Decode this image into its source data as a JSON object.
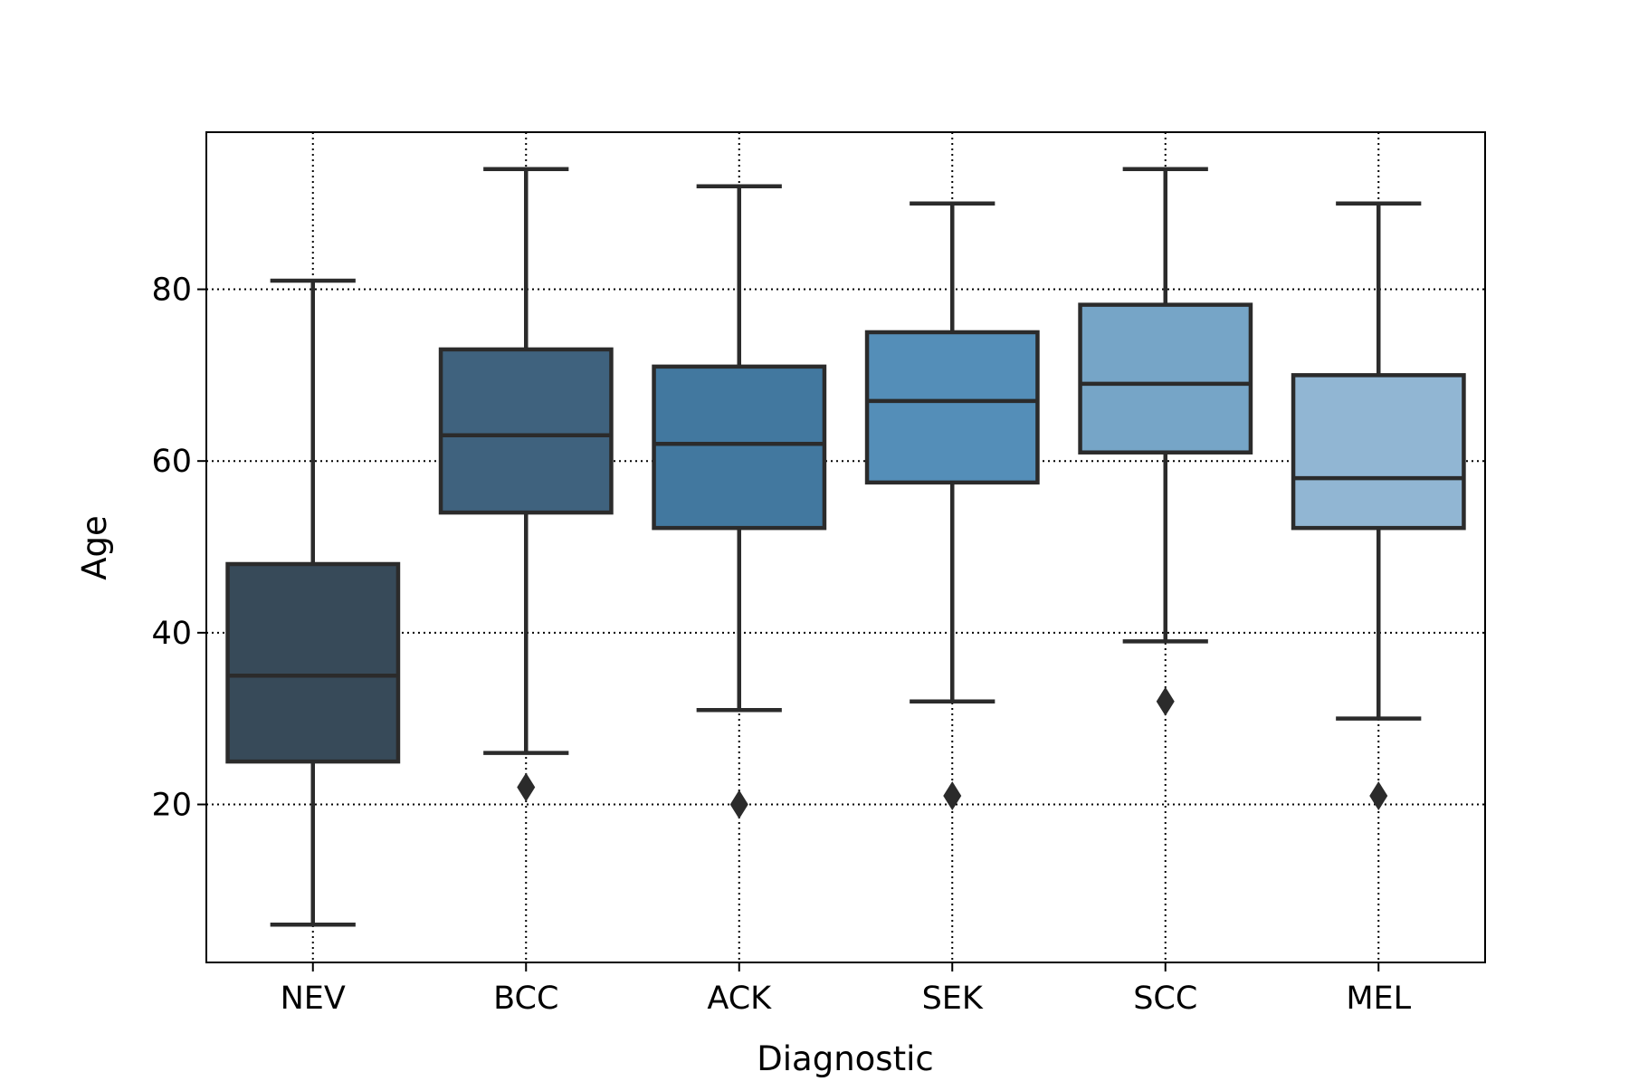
{
  "chart_data": {
    "type": "box",
    "title": "",
    "xlabel": "Diagnostic",
    "ylabel": "Age",
    "ylim": [
      1.6,
      98.3
    ],
    "yticks": [
      20,
      40,
      60,
      80
    ],
    "ytick_labels": [
      "20",
      "40",
      "60",
      "80"
    ],
    "grid": true,
    "categories": [
      "NEV",
      "BCC",
      "ACK",
      "SEK",
      "SCC",
      "MEL"
    ],
    "boxes": [
      {
        "category": "NEV",
        "whisker_low": 6,
        "q1": 25,
        "median": 35,
        "q3": 48,
        "whisker_high": 81,
        "outliers": [],
        "color": "#374a59"
      },
      {
        "category": "BCC",
        "whisker_low": 26,
        "q1": 54,
        "median": 63,
        "q3": 73,
        "whisker_high": 94,
        "outliers": [
          22
        ],
        "color": "#3f627e"
      },
      {
        "category": "ACK",
        "whisker_low": 31,
        "q1": 52.2,
        "median": 62,
        "q3": 71,
        "whisker_high": 92,
        "outliers": [
          20
        ],
        "color": "#42789f"
      },
      {
        "category": "SEK",
        "whisker_low": 32,
        "q1": 57.5,
        "median": 67,
        "q3": 75,
        "whisker_high": 90,
        "outliers": [
          21
        ],
        "color": "#548eb8"
      },
      {
        "category": "SCC",
        "whisker_low": 39,
        "q1": 61,
        "median": 69,
        "q3": 78.2,
        "whisker_high": 94,
        "outliers": [
          32
        ],
        "color": "#76a5c7"
      },
      {
        "category": "MEL",
        "whisker_low": 30,
        "q1": 52.2,
        "median": 58,
        "q3": 70,
        "whisker_high": 90,
        "outliers": [
          21
        ],
        "color": "#91b6d3"
      }
    ]
  }
}
